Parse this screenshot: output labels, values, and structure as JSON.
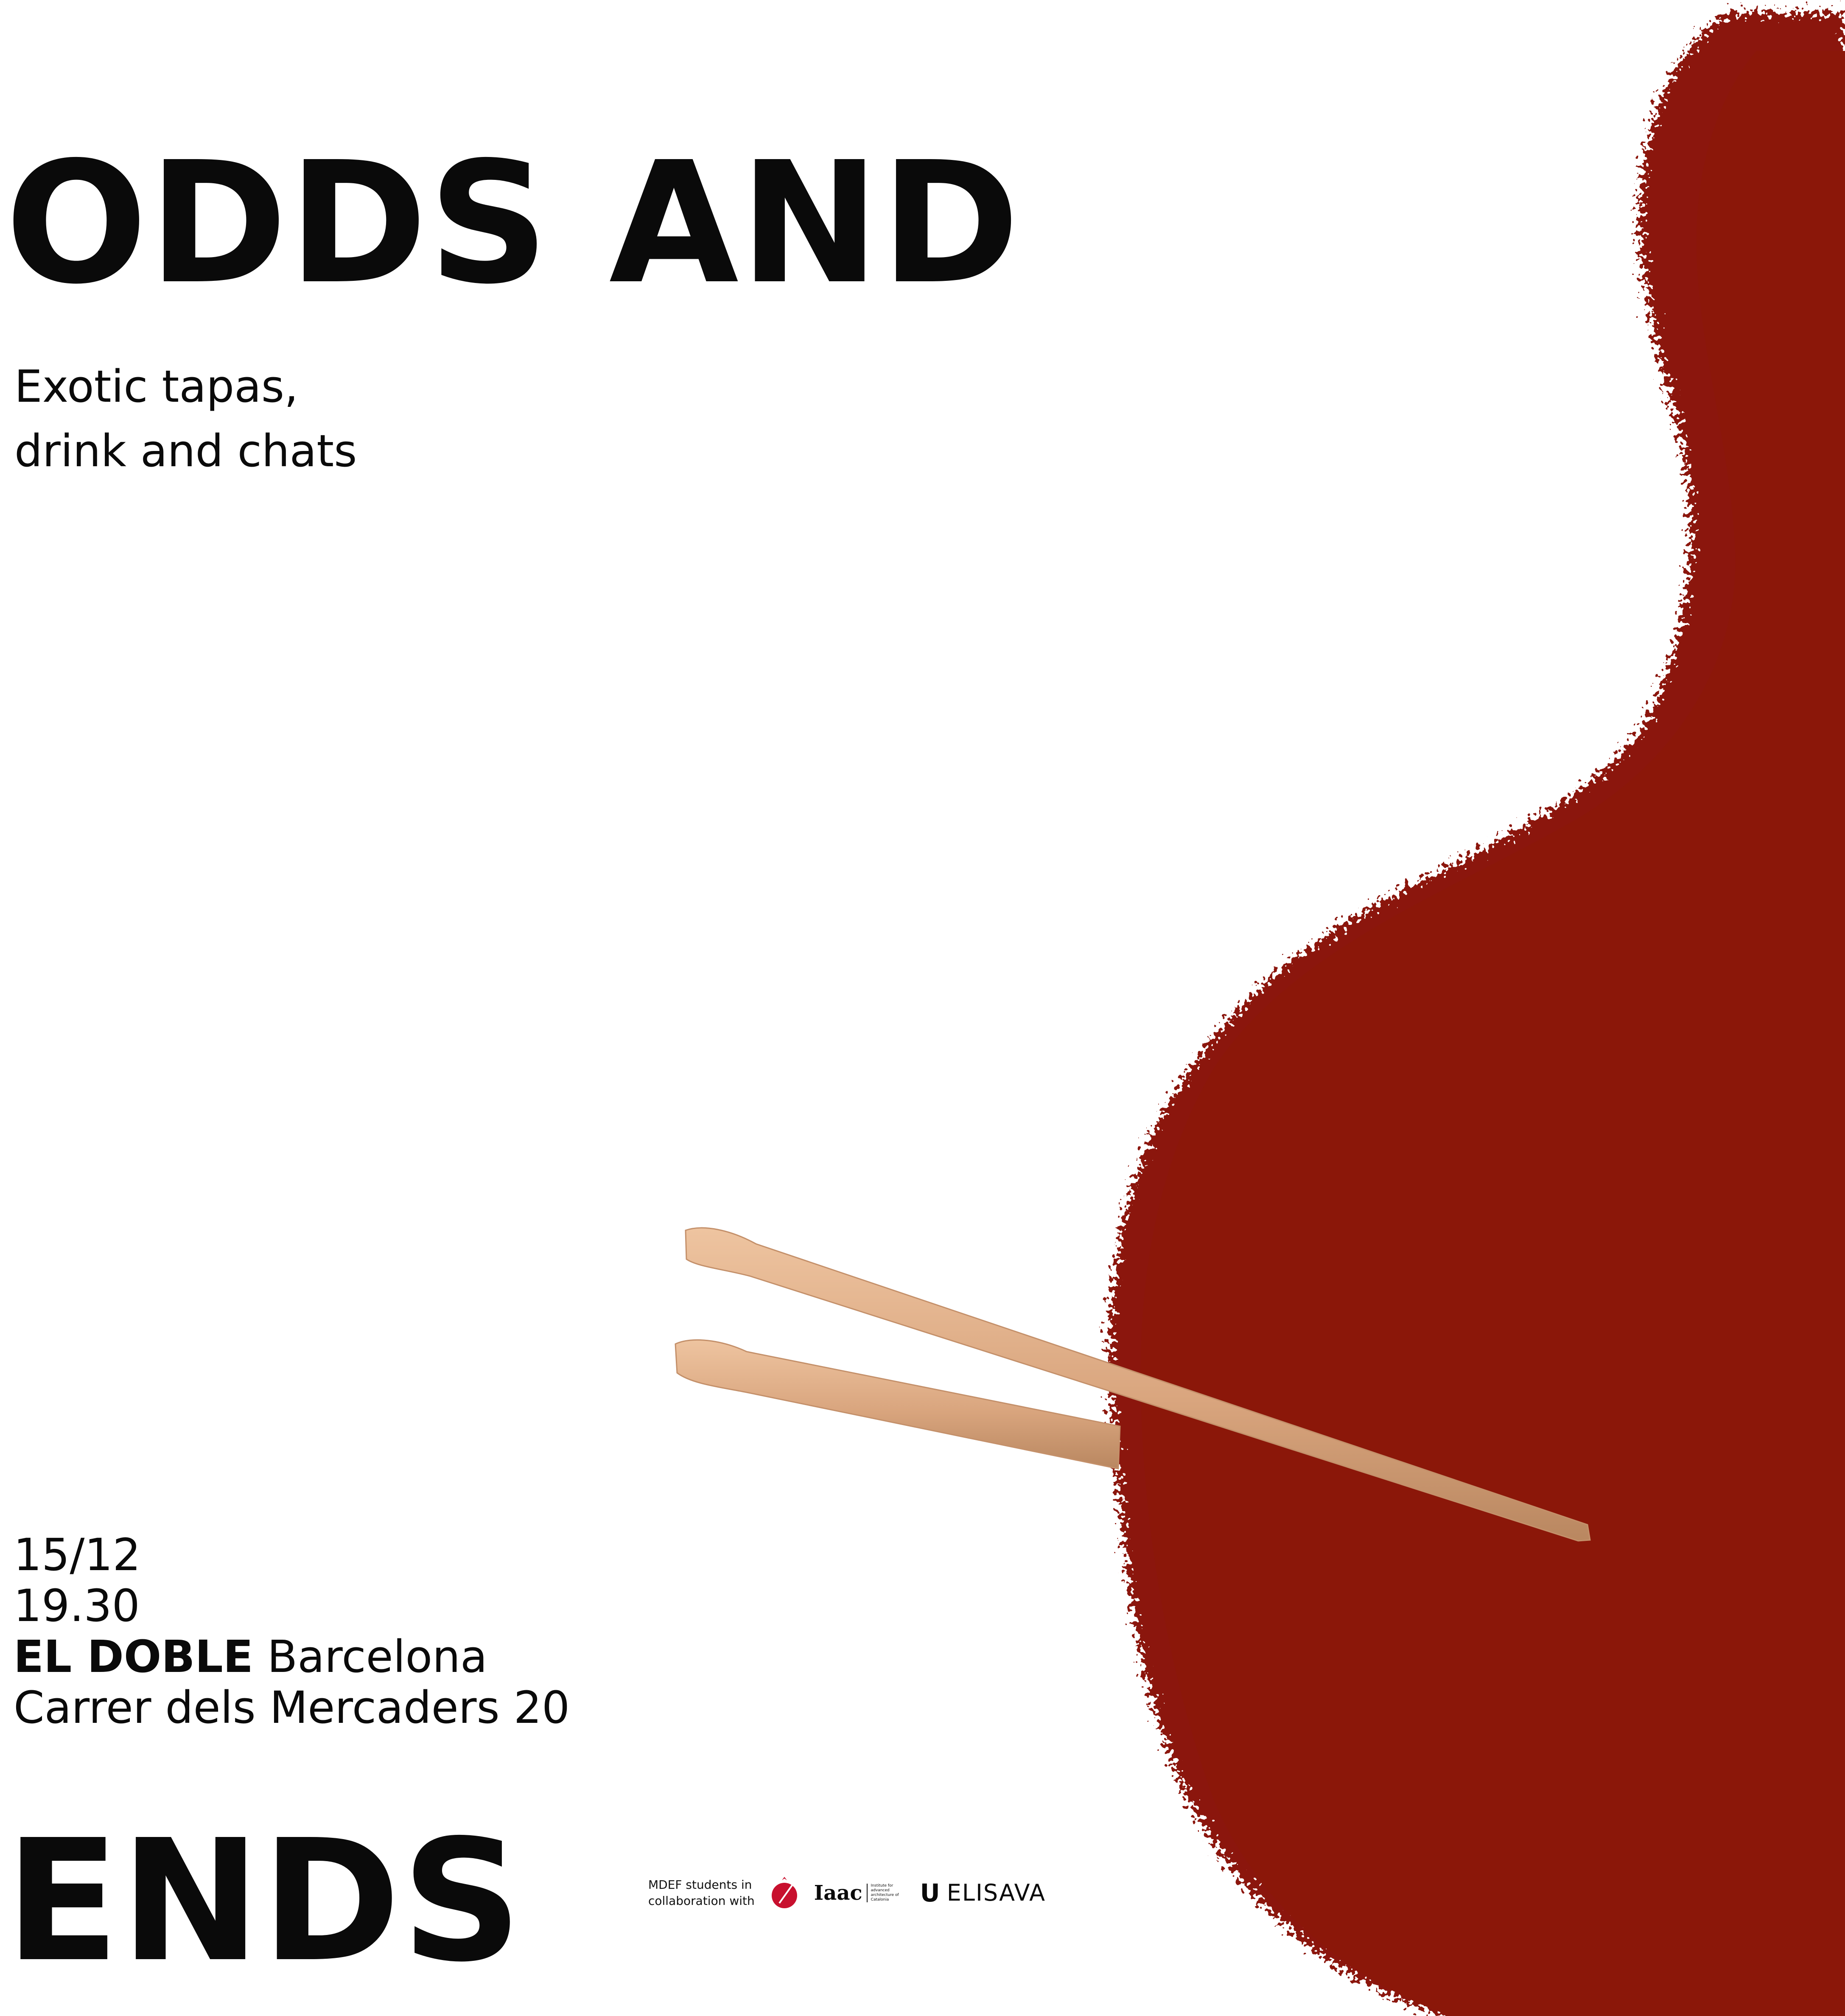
{
  "poster": {
    "title_line_1": "ODDS AND",
    "title_line_2": "ENDS",
    "tagline": [
      "Exotic tapas,",
      "drink and chats"
    ],
    "date": "15/12",
    "time": "19.30",
    "venue_name": "EL DOBLE",
    "venue_city": "Barcelona",
    "address": "Carrer dels Mercaders 20"
  },
  "credits": {
    "lines": [
      "MDEF students in",
      "collaboration with"
    ],
    "logos": [
      {
        "icon": "red-pin-logo-icon",
        "text": ""
      },
      {
        "icon": "iaac-logo-icon",
        "text": "Iaac",
        "subtext": "Institute for advanced architecture of Catalonia"
      },
      {
        "icon": "elisava-logo-icon",
        "text": "ELISAVA",
        "mark": "U"
      }
    ]
  },
  "colors": {
    "background": "#ffffff",
    "text": "#0a0a0a",
    "sauce": "#8b1709",
    "chopstick": "#deb08a",
    "chopstick_shade": "#b98760"
  }
}
